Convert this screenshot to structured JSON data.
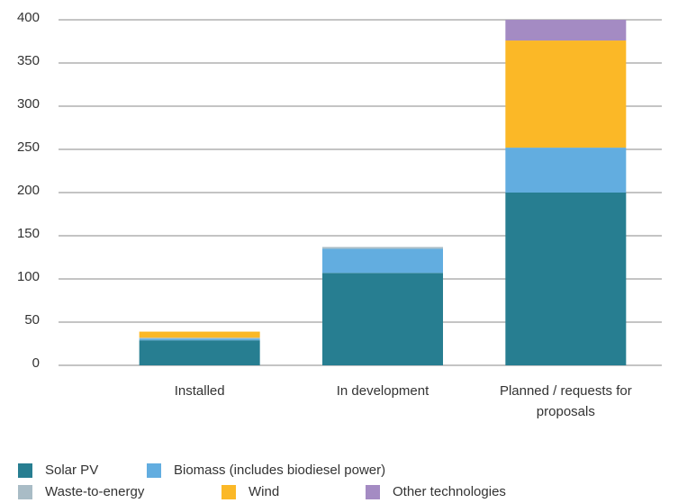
{
  "chart_data": {
    "type": "stacked_bar",
    "categories": [
      "Installed",
      "In development",
      "Planned / requests for proposals"
    ],
    "series": [
      {
        "name": "Solar PV",
        "color": "#277e91",
        "values": [
          29,
          107,
          200
        ]
      },
      {
        "name": "Biomass (includes biodiesel power)",
        "color": "#62ade0",
        "values": [
          2,
          28,
          52
        ]
      },
      {
        "name": "Waste-to-energy",
        "color": "#a9bcc6",
        "values": [
          1,
          2,
          0
        ]
      },
      {
        "name": "Wind",
        "color": "#fbb827",
        "values": [
          7,
          0,
          124
        ]
      },
      {
        "name": "Other technologies",
        "color": "#a48bc3",
        "values": [
          0,
          0,
          24
        ]
      }
    ],
    "ylim": [
      0,
      400
    ],
    "yticks": [
      0,
      50,
      100,
      150,
      200,
      250,
      300,
      350,
      400
    ],
    "grid": true
  }
}
